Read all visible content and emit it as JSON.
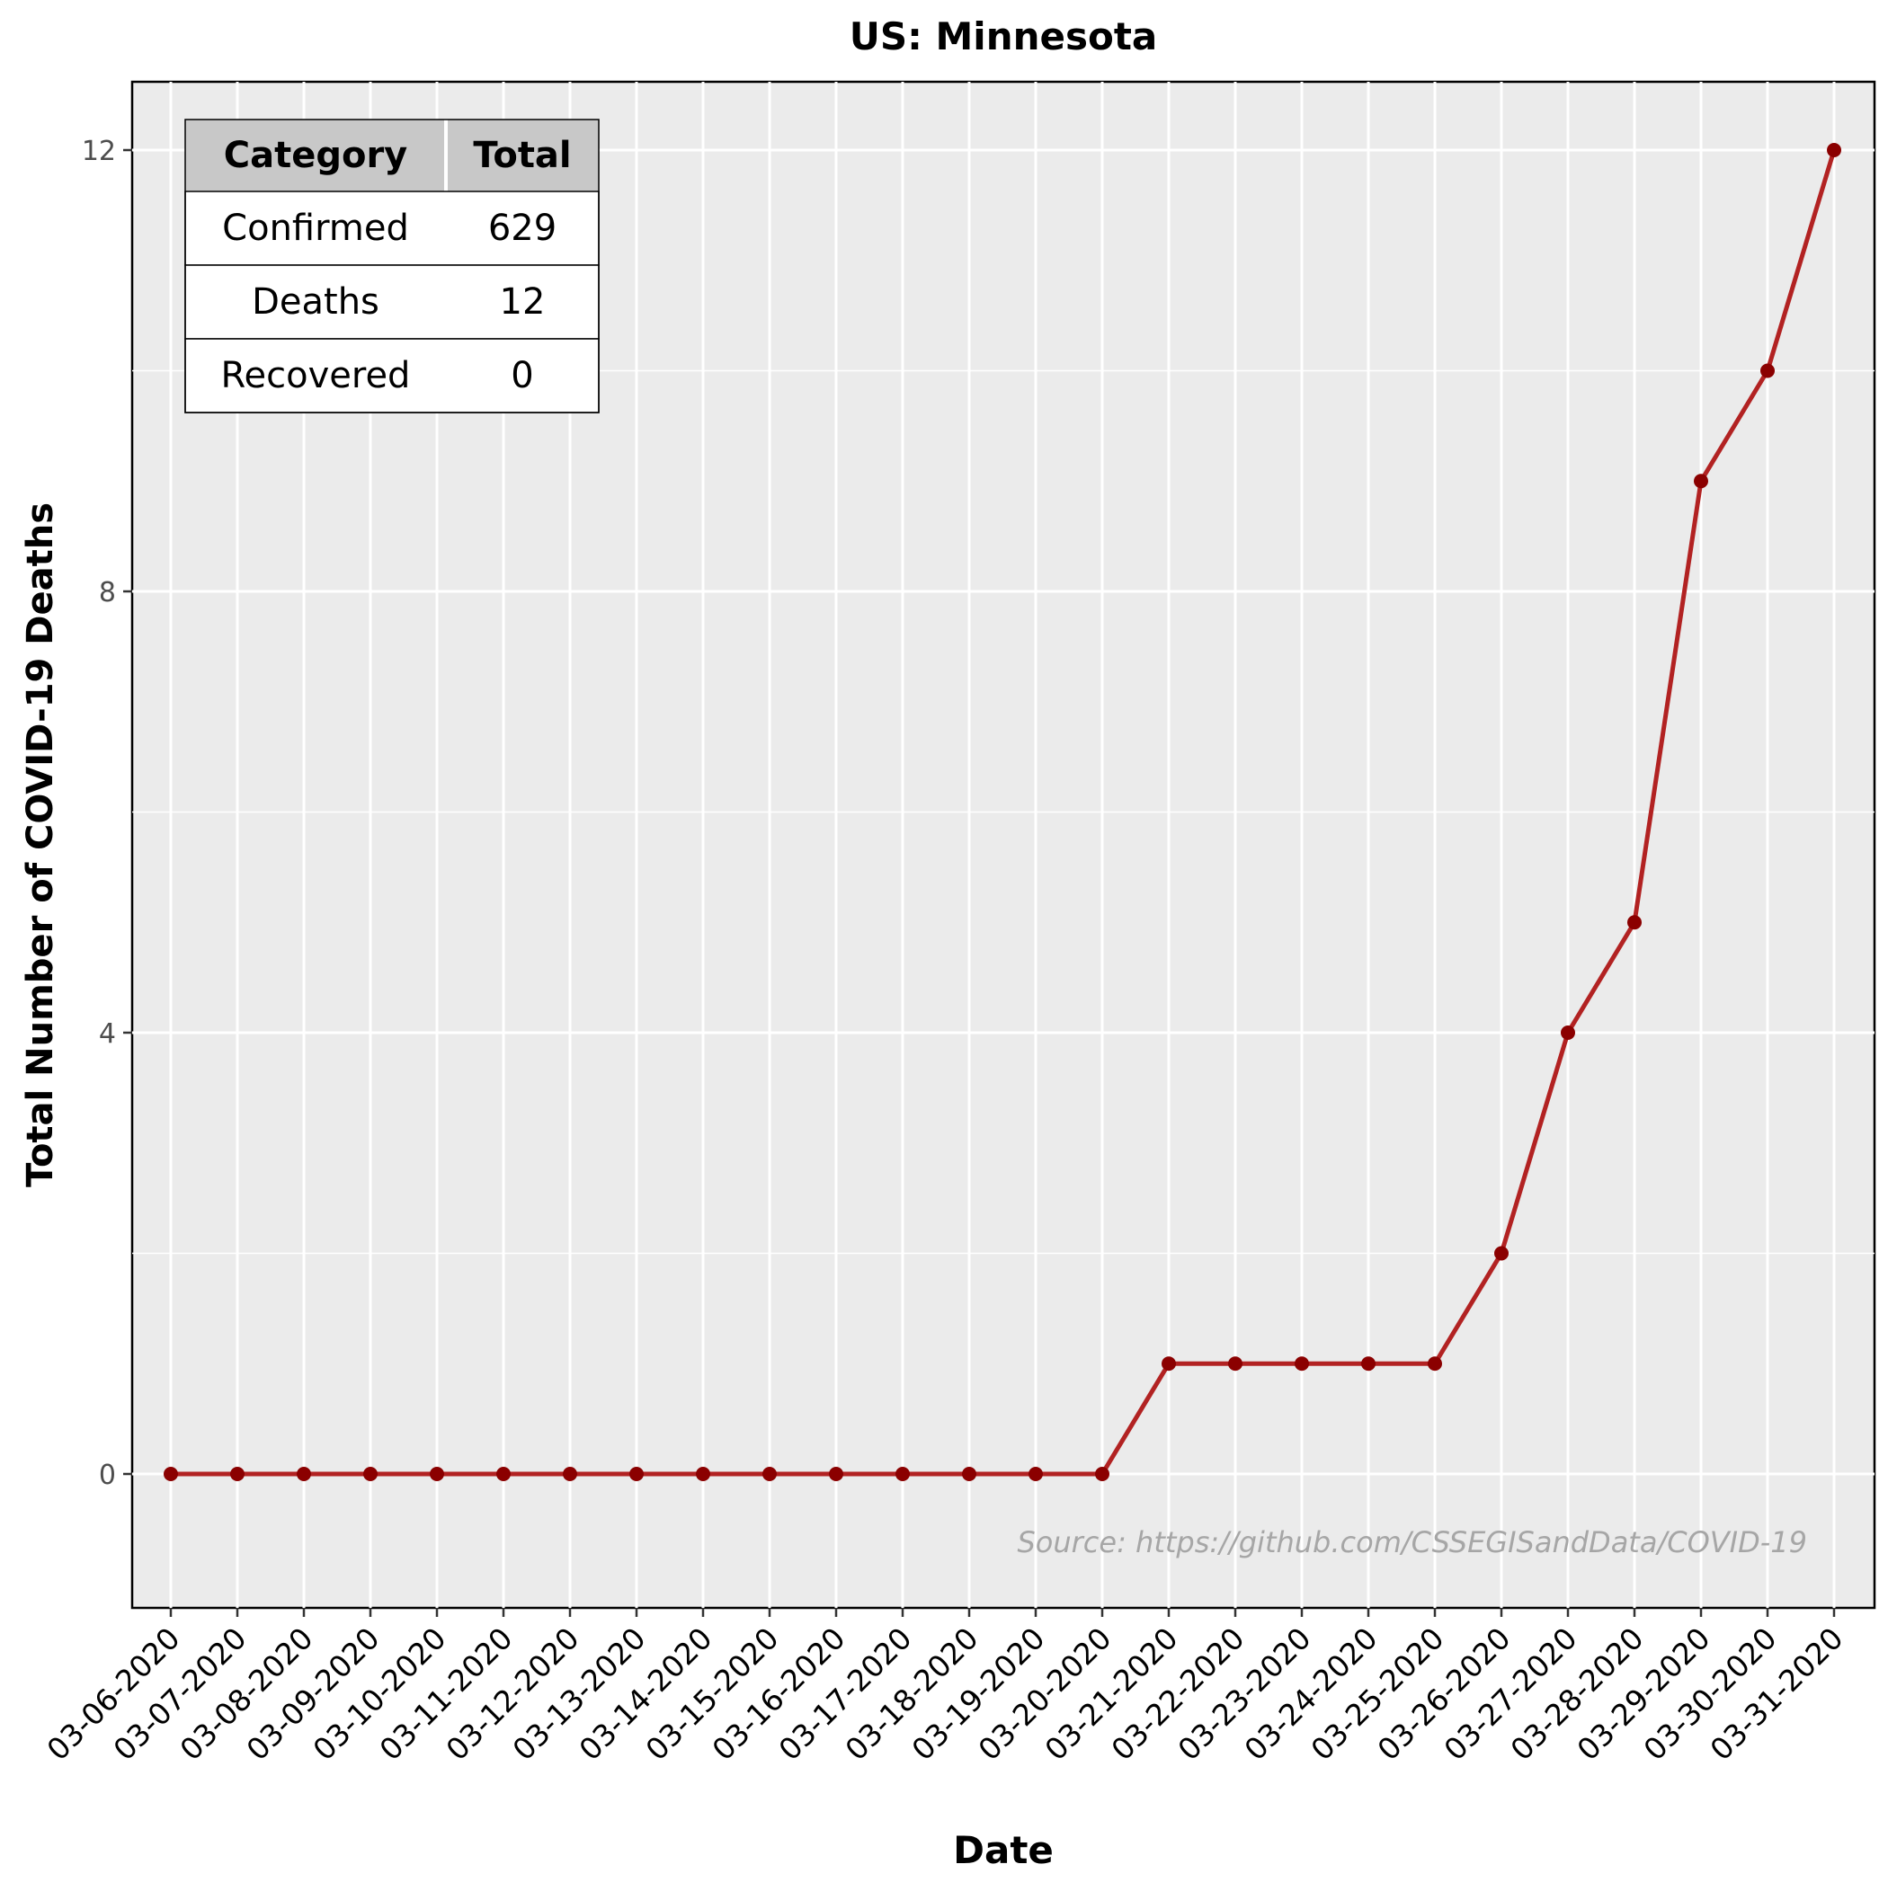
{
  "chart_data": {
    "type": "line",
    "title": "US: Minnesota",
    "xlabel": "Date",
    "ylabel": "Total Number of COVID-19 Deaths",
    "x": [
      "03-06-2020",
      "03-07-2020",
      "03-08-2020",
      "03-09-2020",
      "03-10-2020",
      "03-11-2020",
      "03-12-2020",
      "03-13-2020",
      "03-14-2020",
      "03-15-2020",
      "03-16-2020",
      "03-17-2020",
      "03-18-2020",
      "03-19-2020",
      "03-20-2020",
      "03-21-2020",
      "03-22-2020",
      "03-23-2020",
      "03-24-2020",
      "03-25-2020",
      "03-26-2020",
      "03-27-2020",
      "03-28-2020",
      "03-29-2020",
      "03-30-2020",
      "03-31-2020"
    ],
    "values": [
      0,
      0,
      0,
      0,
      0,
      0,
      0,
      0,
      0,
      0,
      0,
      0,
      0,
      0,
      0,
      1,
      1,
      1,
      1,
      1,
      2,
      4,
      5,
      9,
      10,
      12
    ],
    "ylim": [
      -1.2,
      12.6
    ],
    "yticks": [
      0,
      4,
      8,
      12
    ],
    "grid": true,
    "colors": {
      "line": "#b22222",
      "point": "#8b0000",
      "panel": "#ebebeb"
    }
  },
  "summary_table": {
    "headers": [
      "Category",
      "Total"
    ],
    "rows": [
      [
        "Confirmed",
        "629"
      ],
      [
        "Deaths",
        "12"
      ],
      [
        "Recovered",
        "0"
      ]
    ]
  },
  "source_note": "Source: https://github.com/CSSEGISandData/COVID-19"
}
